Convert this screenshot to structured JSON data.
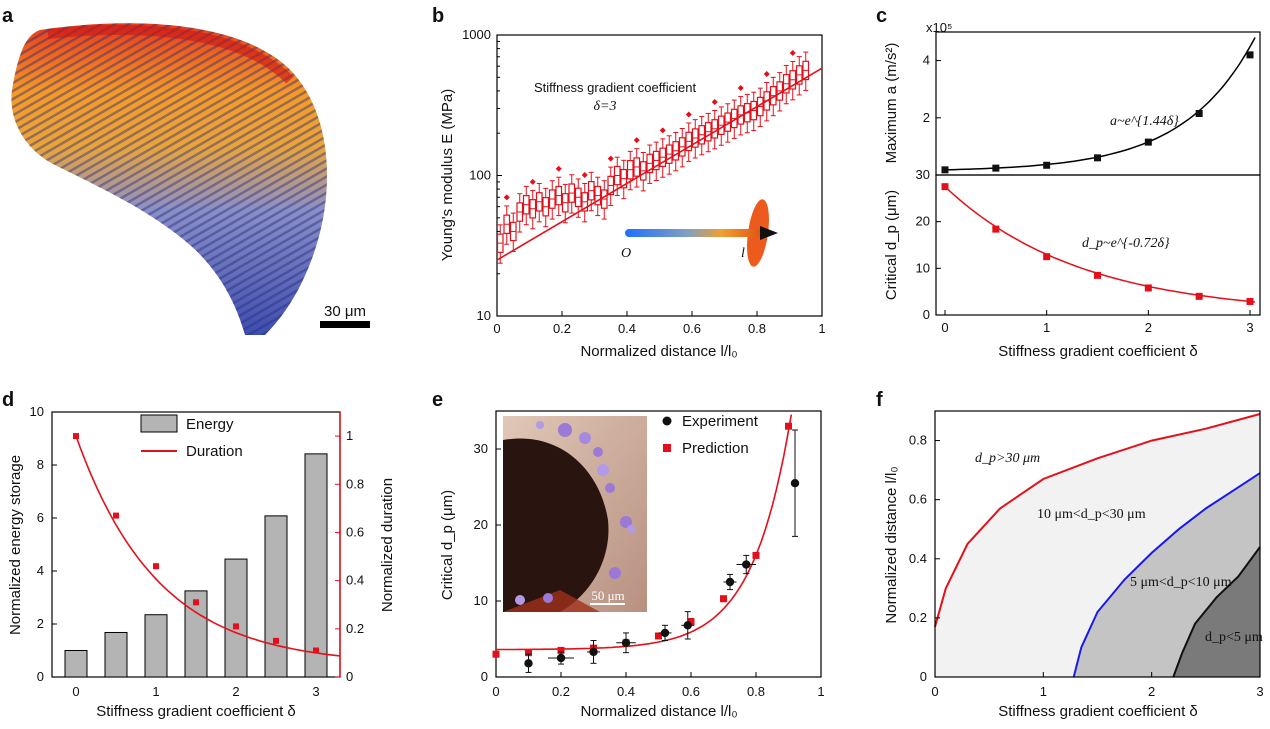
{
  "panel_labels": {
    "a": "a",
    "b": "b",
    "c": "c",
    "d": "d",
    "e": "e",
    "f": "f"
  },
  "colors": {
    "red": "#e3101b",
    "blue": "#1a1ae6",
    "black": "#111111",
    "gray": "#b4b4b4"
  },
  "panel_a": {
    "scale_bar_label": "30 μm"
  },
  "panel_e": {
    "inset_scale_label": "50 μm"
  },
  "chart_data": [
    {
      "id": "b",
      "type": "box",
      "y_scale": "log",
      "xlabel": "Normalized distance l/l₀",
      "ylabel": "Young's modulus E (MPa)",
      "xlim": [
        0,
        1
      ],
      "ylim": [
        10,
        1000
      ],
      "xticks": [
        "0",
        "0.2",
        "0.4",
        "0.6",
        "0.8",
        "1"
      ],
      "yticks": [
        "10",
        "100",
        "1000"
      ],
      "annotation_line1": "Stiffness gradient coefficient",
      "annotation_line2": "δ=3",
      "arrow_start": "O",
      "arrow_end": "l",
      "fit_line": {
        "x": [
          0,
          1
        ],
        "y": [
          25,
          580
        ]
      },
      "median_x": [
        0.01,
        0.03,
        0.05,
        0.07,
        0.09,
        0.11,
        0.13,
        0.15,
        0.17,
        0.19,
        0.21,
        0.23,
        0.25,
        0.27,
        0.29,
        0.31,
        0.33,
        0.35,
        0.37,
        0.39,
        0.41,
        0.43,
        0.45,
        0.47,
        0.49,
        0.51,
        0.53,
        0.55,
        0.57,
        0.59,
        0.61,
        0.63,
        0.65,
        0.67,
        0.69,
        0.71,
        0.73,
        0.75,
        0.77,
        0.79,
        0.81,
        0.83,
        0.85,
        0.87,
        0.89,
        0.91,
        0.93,
        0.95
      ],
      "median_y": [
        33,
        45,
        40,
        55,
        62,
        58,
        65,
        60,
        68,
        72,
        64,
        75,
        70,
        65,
        78,
        72,
        68,
        85,
        100,
        95,
        110,
        115,
        108,
        122,
        128,
        135,
        142,
        150,
        160,
        175,
        185,
        195,
        205,
        215,
        228,
        240,
        255,
        270,
        280,
        290,
        310,
        340,
        370,
        400,
        450,
        480,
        520,
        560
      ]
    },
    {
      "id": "c_top",
      "type": "line",
      "ylabel": "Maximum a (m/s²)",
      "y_multiplier": "x10⁵",
      "xlim": [
        0,
        3
      ],
      "ylim": [
        0,
        5
      ],
      "yticks": [
        "2",
        "4"
      ],
      "formula": "a~e^{1.44δ}",
      "x": [
        0,
        0.5,
        1,
        1.5,
        2,
        2.5,
        3
      ],
      "y": [
        0.18,
        0.24,
        0.34,
        0.6,
        1.15,
        2.15,
        4.2
      ]
    },
    {
      "id": "c_bottom",
      "type": "line",
      "xlabel": "Stiffness gradient coefficient δ",
      "ylabel": "Critical d_p (μm)",
      "xlim": [
        0,
        3
      ],
      "ylim": [
        0,
        30
      ],
      "xticks": [
        "0",
        "1",
        "2",
        "3"
      ],
      "yticks": [
        "0",
        "10",
        "20",
        "30"
      ],
      "formula": "d_p~e^{-0.72δ}",
      "x": [
        0,
        0.5,
        1,
        1.5,
        2,
        2.5,
        3
      ],
      "y": [
        27.5,
        18.4,
        12.5,
        8.5,
        5.8,
        4.0,
        2.9
      ]
    },
    {
      "id": "d",
      "type": "bar+line",
      "xlabel": "Stiffness gradient coefficient δ",
      "ylabel_left": "Normalized energy storage",
      "ylabel_right": "Normalized duration",
      "xlim": [
        -0.3,
        3.3
      ],
      "ylim_left": [
        0,
        10
      ],
      "ylim_right": [
        0,
        1.1
      ],
      "xticks": [
        "0",
        "1",
        "2",
        "3"
      ],
      "yticks_left": [
        "0",
        "2",
        "4",
        "6",
        "8",
        "10"
      ],
      "yticks_right": [
        "0",
        "0.2",
        "0.4",
        "0.6",
        "0.8",
        "1"
      ],
      "legend": [
        "Energy",
        "Duration"
      ],
      "x": [
        0,
        0.5,
        1,
        1.5,
        2,
        2.5,
        3
      ],
      "energy": [
        1.0,
        1.68,
        2.35,
        3.25,
        4.45,
        6.08,
        8.42
      ],
      "duration": [
        1.0,
        0.67,
        0.46,
        0.31,
        0.21,
        0.15,
        0.11
      ]
    },
    {
      "id": "e",
      "type": "scatter",
      "xlabel": "Normalized distance l/l₀",
      "ylabel": "Critical d_p (μm)",
      "xlim": [
        0,
        1
      ],
      "ylim": [
        0,
        35
      ],
      "xticks": [
        "0",
        "0.2",
        "0.4",
        "0.6",
        "0.8",
        "1"
      ],
      "yticks": [
        "0",
        "10",
        "20",
        "30"
      ],
      "legend": [
        "Experiment",
        "Prediction"
      ],
      "experiment": {
        "x": [
          0.1,
          0.2,
          0.3,
          0.4,
          0.52,
          0.59,
          0.72,
          0.77,
          0.92
        ],
        "y": [
          1.8,
          2.5,
          3.3,
          4.5,
          5.8,
          6.8,
          12.5,
          14.8,
          25.5
        ],
        "yerr": [
          1.2,
          0.8,
          1.5,
          1.3,
          1.0,
          1.8,
          1.0,
          1.2,
          7.0
        ],
        "xerr": [
          0,
          0.04,
          0.02,
          0.03,
          0.02,
          0.02,
          0.02,
          0.03,
          0
        ]
      },
      "prediction": {
        "x": [
          0,
          0.1,
          0.2,
          0.3,
          0.4,
          0.5,
          0.6,
          0.7,
          0.8,
          0.9
        ],
        "y": [
          3.0,
          3.2,
          3.5,
          3.8,
          4.5,
          5.4,
          7.3,
          10.3,
          16.0,
          33.0
        ]
      }
    },
    {
      "id": "f",
      "type": "area",
      "xlabel": "Stiffness gradient coefficient δ",
      "ylabel": "Normalized distance l/l₀",
      "xlim": [
        0,
        3
      ],
      "ylim": [
        0,
        0.9
      ],
      "xticks": [
        "0",
        "1",
        "2",
        "3"
      ],
      "yticks": [
        "0",
        "0.2",
        "0.4",
        "0.6",
        "0.8"
      ],
      "regions": [
        "d_p>30 μm",
        "10 μm<d_p<30 μm",
        "5 μm<d_p<10 μm",
        "d_p<5 μm"
      ],
      "curve_30": {
        "x": [
          0,
          0.1,
          0.3,
          0.6,
          1,
          1.5,
          2,
          2.5,
          3
        ],
        "y": [
          0.17,
          0.3,
          0.45,
          0.57,
          0.67,
          0.74,
          0.8,
          0.84,
          0.89
        ]
      },
      "curve_10": {
        "x": [
          1.28,
          1.35,
          1.5,
          1.75,
          2,
          2.25,
          2.5,
          2.75,
          3
        ],
        "y": [
          0,
          0.1,
          0.22,
          0.33,
          0.42,
          0.5,
          0.57,
          0.63,
          0.69
        ]
      },
      "curve_5": {
        "x": [
          2.2,
          2.28,
          2.4,
          2.6,
          2.8,
          3
        ],
        "y": [
          0,
          0.08,
          0.18,
          0.27,
          0.34,
          0.44
        ]
      }
    }
  ]
}
